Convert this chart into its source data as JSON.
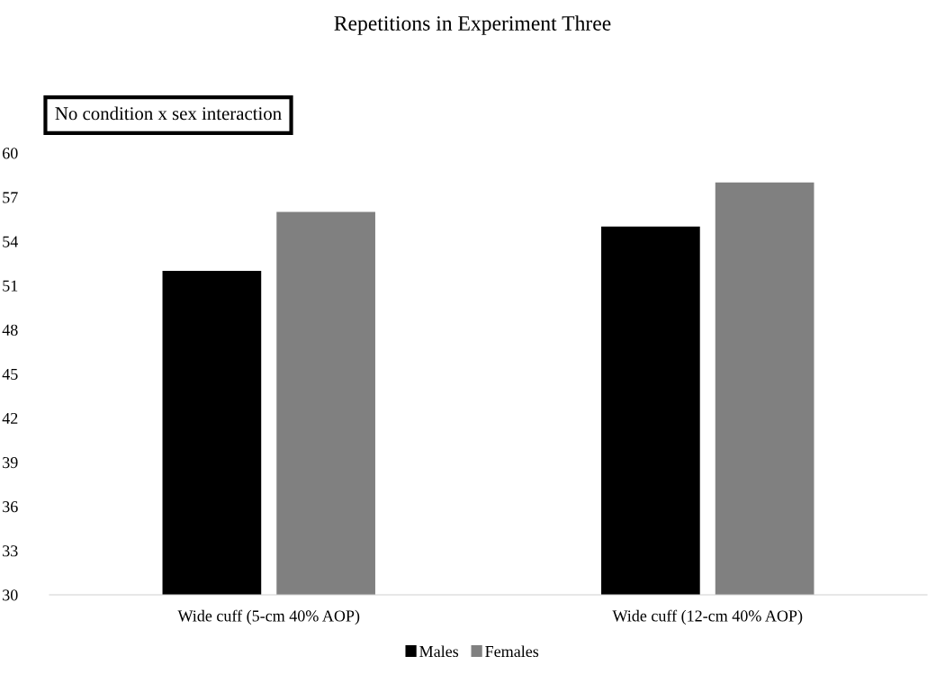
{
  "chart_data": {
    "type": "bar",
    "title": "Repetitions in Experiment Three",
    "categories": [
      "Wide cuff (5-cm 40% AOP)",
      "Wide cuff (12-cm 40% AOP)"
    ],
    "series": [
      {
        "name": "Males",
        "color": "#000000",
        "values": [
          52,
          55
        ]
      },
      {
        "name": "Females",
        "color": "#808080",
        "values": [
          56,
          58
        ]
      }
    ],
    "ylim": [
      30,
      60
    ],
    "yticks": [
      30,
      33,
      36,
      39,
      42,
      45,
      48,
      51,
      54,
      57,
      60
    ],
    "annotations": [
      "No condition x sex interaction"
    ],
    "grid": false,
    "legend": "bottom"
  }
}
